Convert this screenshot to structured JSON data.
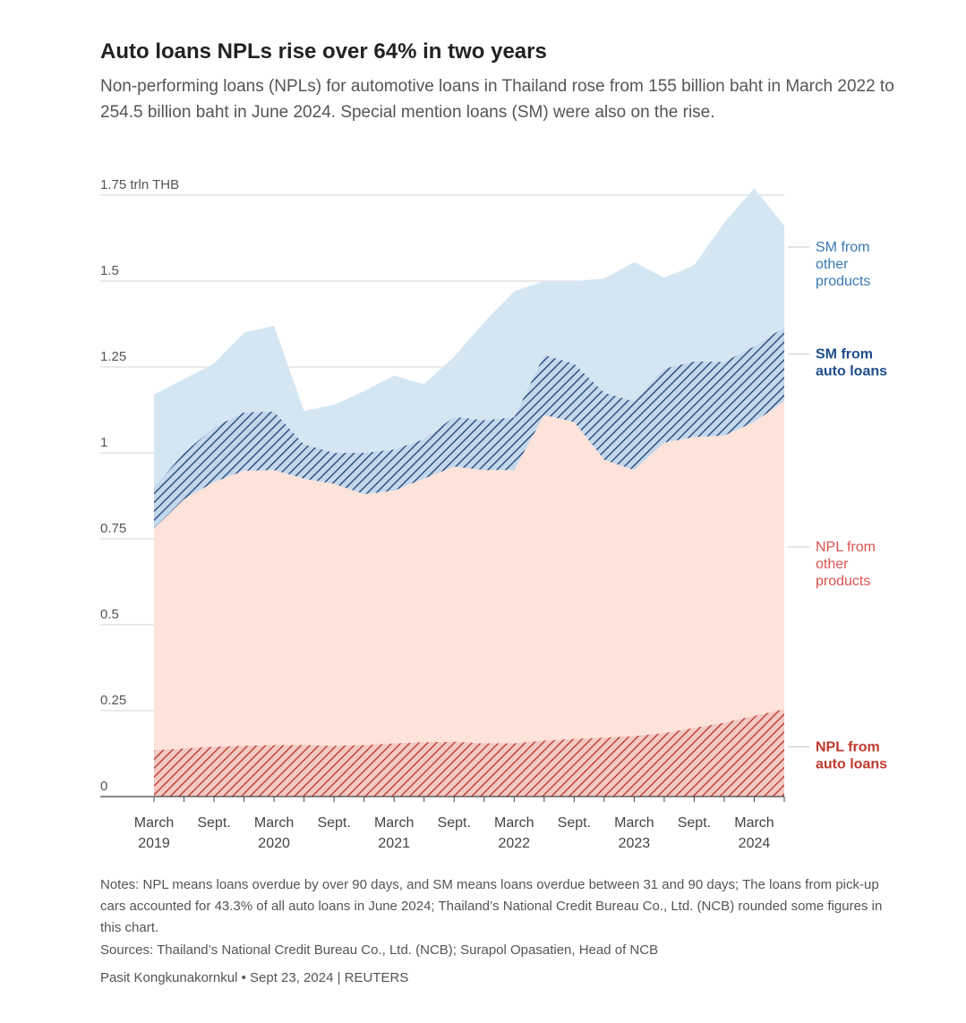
{
  "header": {
    "title": "Auto loans NPLs rise over 64% in two years",
    "subtitle": "Non-performing loans (NPLs) for automotive loans in Thailand rose from 155 billion baht in March 2022 to 254.5 billion baht in June 2024. Special mention loans (SM) were also on the rise."
  },
  "chart_data": {
    "type": "area",
    "stacked": true,
    "x": [
      "2019-03",
      "2019-06",
      "2019-09",
      "2019-12",
      "2020-03",
      "2020-06",
      "2020-09",
      "2020-12",
      "2021-03",
      "2021-06",
      "2021-09",
      "2021-12",
      "2022-03",
      "2022-06",
      "2022-09",
      "2022-12",
      "2023-03",
      "2023-06",
      "2023-09",
      "2023-12",
      "2024-03",
      "2024-06"
    ],
    "x_tick_labels": [
      {
        "x": "2019-03",
        "line1": "March",
        "line2": "2019"
      },
      {
        "x": "2019-09",
        "line1": "Sept.",
        "line2": ""
      },
      {
        "x": "2020-03",
        "line1": "March",
        "line2": "2020"
      },
      {
        "x": "2020-09",
        "line1": "Sept.",
        "line2": ""
      },
      {
        "x": "2021-03",
        "line1": "March",
        "line2": "2021"
      },
      {
        "x": "2021-09",
        "line1": "Sept.",
        "line2": ""
      },
      {
        "x": "2022-03",
        "line1": "March",
        "line2": "2022"
      },
      {
        "x": "2022-09",
        "line1": "Sept.",
        "line2": ""
      },
      {
        "x": "2023-03",
        "line1": "March",
        "line2": "2023"
      },
      {
        "x": "2023-09",
        "line1": "Sept.",
        "line2": ""
      },
      {
        "x": "2024-03",
        "line1": "March",
        "line2": "2024"
      }
    ],
    "y_ticks": [
      {
        "value": 1.75,
        "label": "1.75 trln THB"
      },
      {
        "value": 1.5,
        "label": "1.5"
      },
      {
        "value": 1.25,
        "label": "1.25"
      },
      {
        "value": 1,
        "label": "1"
      },
      {
        "value": 0.75,
        "label": "0.75"
      },
      {
        "value": 0.5,
        "label": "0.5"
      },
      {
        "value": 0.25,
        "label": "0.25"
      },
      {
        "value": 0,
        "label": "0"
      }
    ],
    "ylim": [
      0,
      1.75
    ],
    "grid": true,
    "legend_position": "right",
    "series": [
      {
        "key": "npl_auto",
        "name": "NPL from auto loans",
        "label_lines": [
          "NPL from",
          "auto loans"
        ],
        "bold": true,
        "color": "#c0392b",
        "fill": "#e8a09a",
        "pattern": "hatch-red",
        "values": [
          0.135,
          0.14,
          0.145,
          0.148,
          0.15,
          0.15,
          0.148,
          0.15,
          0.155,
          0.158,
          0.16,
          0.155,
          0.155,
          0.163,
          0.168,
          0.172,
          0.176,
          0.185,
          0.2,
          0.215,
          0.235,
          0.2545
        ]
      },
      {
        "key": "npl_other",
        "name": "NPL from other products",
        "label_lines": [
          "NPL from",
          "other",
          "products"
        ],
        "bold": false,
        "color": "#d9534f",
        "fill": "#fde3da",
        "pattern": "",
        "values": [
          0.645,
          0.725,
          0.77,
          0.8,
          0.8,
          0.775,
          0.762,
          0.73,
          0.735,
          0.767,
          0.8,
          0.795,
          0.795,
          0.947,
          0.922,
          0.808,
          0.774,
          0.845,
          0.846,
          0.835,
          0.855,
          0.896
        ]
      },
      {
        "key": "sm_auto",
        "name": "SM from auto loans",
        "label_lines": [
          "SM from",
          "auto loans"
        ],
        "bold": true,
        "color": "#1f4e8c",
        "fill": "#8fb0d4",
        "pattern": "hatch-blue",
        "values": [
          0.12,
          0.135,
          0.16,
          0.17,
          0.17,
          0.1,
          0.09,
          0.12,
          0.12,
          0.115,
          0.145,
          0.145,
          0.153,
          0.175,
          0.17,
          0.195,
          0.2,
          0.215,
          0.22,
          0.215,
          0.22,
          0.215
        ]
      },
      {
        "key": "sm_other",
        "name": "SM from other products",
        "label_lines": [
          "SM from",
          "other",
          "products"
        ],
        "bold": false,
        "color": "#3a78b5",
        "fill": "#d5e6f3",
        "pattern": "",
        "values": [
          0.27,
          0.215,
          0.185,
          0.232,
          0.25,
          0.097,
          0.14,
          0.18,
          0.215,
          0.16,
          0.175,
          0.285,
          0.367,
          0.215,
          0.24,
          0.332,
          0.405,
          0.265,
          0.28,
          0.405,
          0.46,
          0.295
        ]
      }
    ]
  },
  "footer": {
    "notes": "Notes: NPL means loans overdue by over 90 days, and SM means loans overdue between 31 and 90 days; The loans from pick-up cars accounted for 43.3% of all auto loans in June 2024; Thailand’s National Credit Bureau Co., Ltd. (NCB) rounded some figures in this chart.",
    "sources": "Sources: Thailand’s National Credit Bureau Co., Ltd. (NCB); Surapol Opasatien, Head of NCB",
    "credit": "Pasit Kongkunakornkul • Sept 23, 2024 | REUTERS"
  }
}
